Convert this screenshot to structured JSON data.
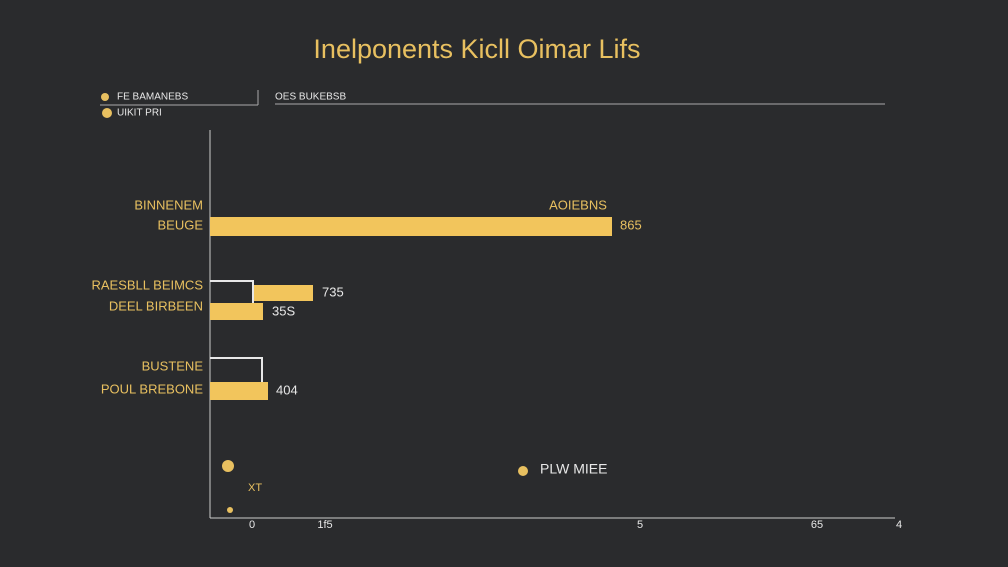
{
  "title": "Inelponents Kicll Oimar Lifs",
  "legend": {
    "items": [
      "FE BAMANEBS",
      "UIKIT PRI"
    ],
    "header": "OES BUKEBSB"
  },
  "rows": [
    {
      "labels": [
        "BINNENEM",
        "BEUGE"
      ],
      "annotation": "AOIEBNS",
      "value_labels": [
        "865"
      ]
    },
    {
      "labels": [
        "RAESBLL BEIMCS",
        "DEEL BIRBEEN"
      ],
      "value_labels": [
        "735",
        "35S"
      ]
    },
    {
      "labels": [
        "BUSTENE",
        "POUL BREBONE"
      ],
      "value_labels": [
        "404"
      ]
    }
  ],
  "x_tick_labels": [
    "0",
    "1f5",
    "5",
    "65",
    "4"
  ],
  "bottom": {
    "marker_label": "XT",
    "legend_label": "PLW MIEE"
  }
}
